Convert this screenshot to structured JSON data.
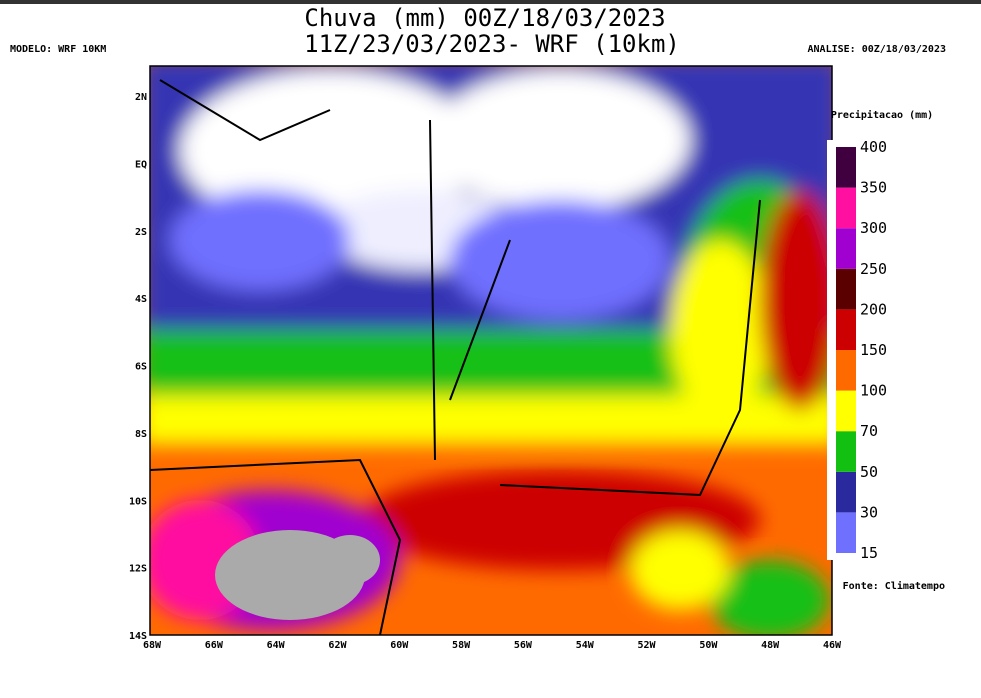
{
  "header": {
    "title_line1": "Chuva (mm) 00Z/18/03/2023",
    "title_line2": "11Z/23/03/2023- WRF (10km)",
    "model": "MODELO: WRF 10KM",
    "analysis": "ANALISE: 00Z/18/03/2023"
  },
  "axes": {
    "x_labels": [
      "68W",
      "66W",
      "64W",
      "62W",
      "60W",
      "58W",
      "56W",
      "54W",
      "52W",
      "50W",
      "48W",
      "46W"
    ],
    "y_labels": [
      "2N",
      "EQ",
      "2S",
      "4S",
      "6S",
      "8S",
      "10S",
      "12S",
      "14S"
    ]
  },
  "legend": {
    "title": "Precipitacao (mm)",
    "levels": [
      15,
      30,
      50,
      70,
      100,
      150,
      200,
      250,
      300,
      350,
      400
    ],
    "colors": [
      "#7070ff",
      "#2a2a9e",
      "#12c012",
      "#ffff00",
      "#ff6a00",
      "#cc0000",
      "#5a0000",
      "#a000d0",
      "#ff10a0",
      "#400040"
    ]
  },
  "source": "Fonte: Climatempo"
}
